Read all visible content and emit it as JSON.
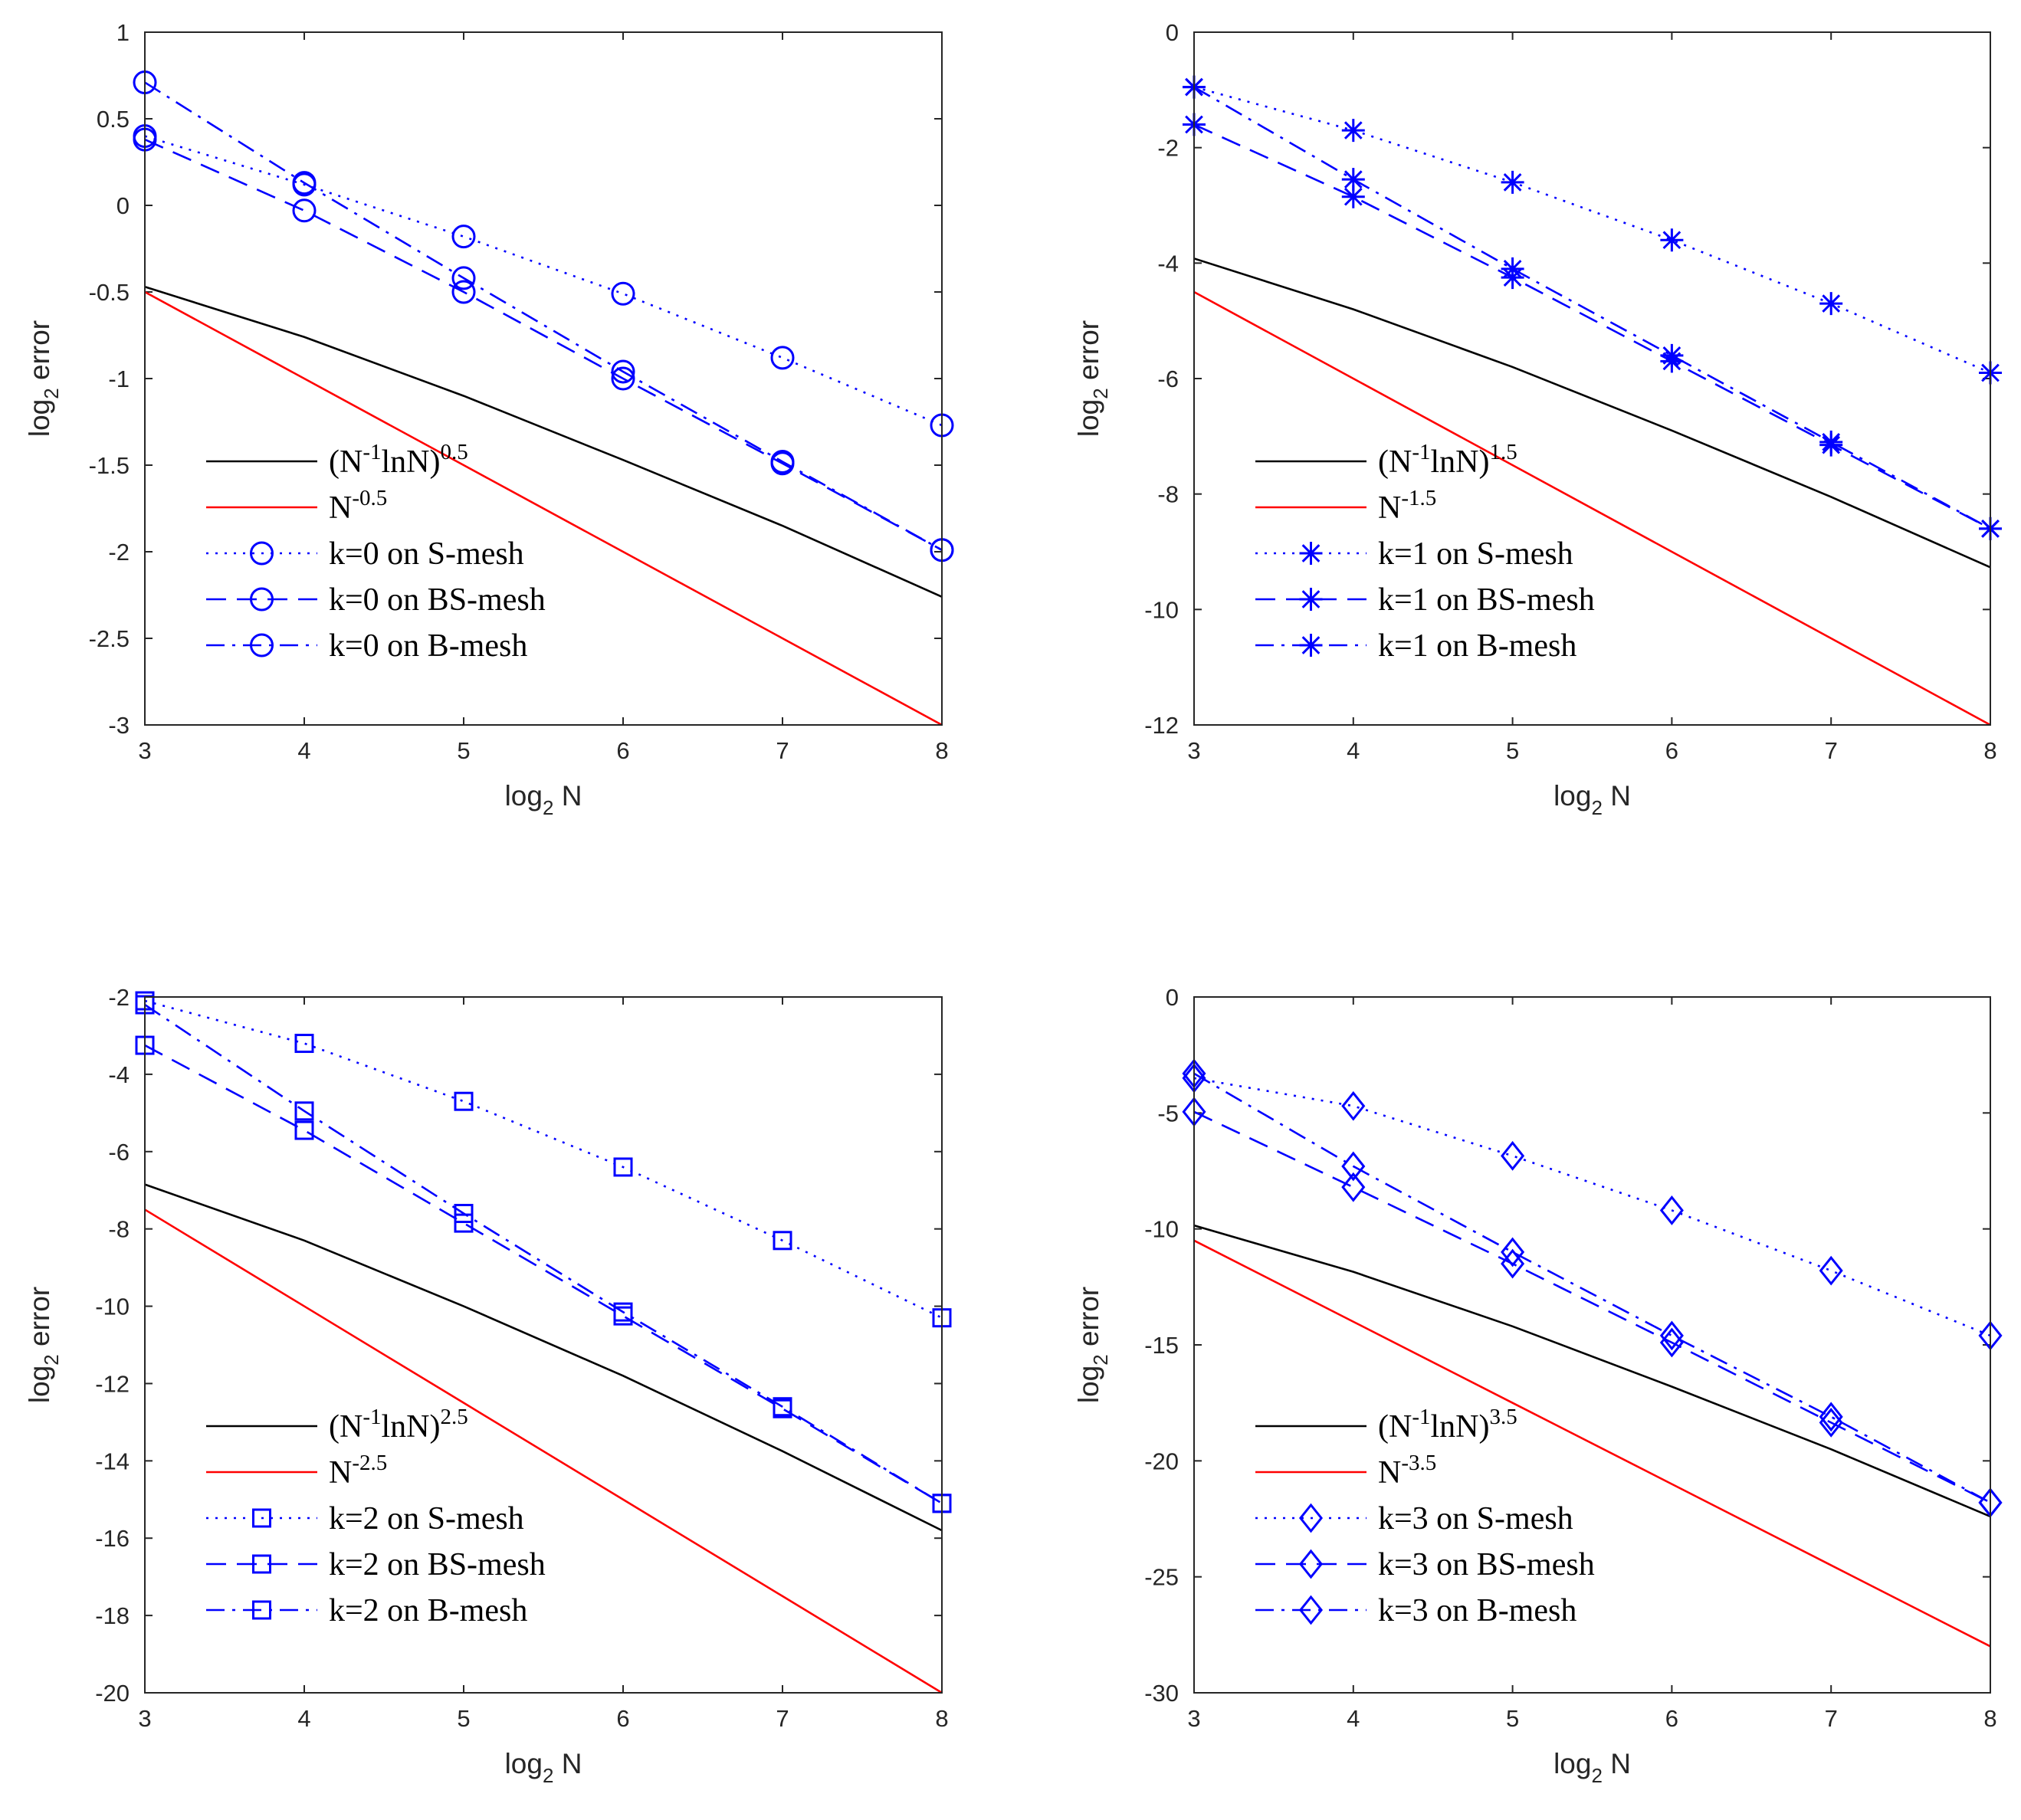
{
  "chart_data": [
    {
      "type": "line",
      "xlabel": "log2 N",
      "ylabel": "log2 error",
      "xlim": [
        3,
        8
      ],
      "ylim": [
        -3,
        1
      ],
      "xticks": [
        3,
        4,
        5,
        6,
        7,
        8
      ],
      "yticks": [
        1,
        0.5,
        0,
        -0.5,
        -1,
        -1.5,
        -2,
        -2.5,
        -3
      ],
      "yticklabels": [
        "1",
        "0.5",
        "0",
        "-0.5",
        "-1",
        "-1.5",
        "-2",
        "-2.5",
        "-3"
      ],
      "legend_position": "bottom-left",
      "x": [
        3,
        4,
        5,
        6,
        7,
        8
      ],
      "series": [
        {
          "name": "(N-1lnN)0.5",
          "label_base": "(N",
          "label_sup1": "-1",
          "label_mid": "lnN)",
          "label_sup2": "0.5",
          "color": "#000000",
          "style": "solid",
          "marker": "none",
          "values": [
            -0.47,
            -0.76,
            -1.1,
            -1.47,
            -1.85,
            -2.26
          ]
        },
        {
          "name": "N-0.5",
          "label_base": "N",
          "label_sup1": "-0.5",
          "label_mid": "",
          "label_sup2": "",
          "color": "#ff0000",
          "style": "solid",
          "marker": "none",
          "values": [
            -0.5,
            -1.0,
            -1.5,
            -2.0,
            -2.5,
            -3.0
          ]
        },
        {
          "name": "k=0 on S-mesh",
          "label_base": "k=0 on S-mesh",
          "label_sup1": "",
          "label_mid": "",
          "label_sup2": "",
          "color": "#0000ff",
          "style": "dotted",
          "marker": "circle",
          "values": [
            0.4,
            0.12,
            -0.18,
            -0.51,
            -0.88,
            -1.27
          ]
        },
        {
          "name": "k=0 on BS-mesh",
          "label_base": "k=0 on BS-mesh",
          "label_sup1": "",
          "label_mid": "",
          "label_sup2": "",
          "color": "#0000ff",
          "style": "dashed",
          "marker": "circle",
          "values": [
            0.38,
            -0.03,
            -0.5,
            -1.0,
            -1.49,
            -1.99
          ]
        },
        {
          "name": "k=0 on B-mesh",
          "label_base": "k=0 on B-mesh",
          "label_sup1": "",
          "label_mid": "",
          "label_sup2": "",
          "color": "#0000ff",
          "style": "dashdot",
          "marker": "circle",
          "values": [
            0.71,
            0.13,
            -0.42,
            -0.96,
            -1.48,
            -1.99
          ]
        }
      ]
    },
    {
      "type": "line",
      "xlabel": "log2 N",
      "ylabel": "log2 error",
      "xlim": [
        3,
        8
      ],
      "ylim": [
        -12,
        0
      ],
      "xticks": [
        3,
        4,
        5,
        6,
        7,
        8
      ],
      "yticks": [
        0,
        -2,
        -4,
        -6,
        -8,
        -10,
        -12
      ],
      "yticklabels": [
        "0",
        "-2",
        "-4",
        "-6",
        "-8",
        "-10",
        "-12"
      ],
      "legend_position": "bottom-left",
      "x": [
        3,
        4,
        5,
        6,
        7,
        8
      ],
      "series": [
        {
          "name": "(N-1lnN)1.5",
          "label_base": "(N",
          "label_sup1": "-1",
          "label_mid": "lnN)",
          "label_sup2": "1.5",
          "color": "#000000",
          "style": "solid",
          "marker": "none",
          "values": [
            -3.92,
            -4.8,
            -5.8,
            -6.9,
            -8.05,
            -9.27
          ]
        },
        {
          "name": "N-1.5",
          "label_base": "N",
          "label_sup1": "-1.5",
          "label_mid": "",
          "label_sup2": "",
          "color": "#ff0000",
          "style": "solid",
          "marker": "none",
          "values": [
            -4.5,
            -6.0,
            -7.5,
            -9.0,
            -10.5,
            -12.0
          ]
        },
        {
          "name": "k=1 on S-mesh",
          "label_base": "k=1 on S-mesh",
          "label_sup1": "",
          "label_mid": "",
          "label_sup2": "",
          "color": "#0000ff",
          "style": "dotted",
          "marker": "star",
          "values": [
            -0.95,
            -1.7,
            -2.6,
            -3.6,
            -4.7,
            -5.9
          ]
        },
        {
          "name": "k=1 on BS-mesh",
          "label_base": "k=1 on BS-mesh",
          "label_sup1": "",
          "label_mid": "",
          "label_sup2": "",
          "color": "#0000ff",
          "style": "dashed",
          "marker": "star",
          "values": [
            -1.6,
            -2.85,
            -4.25,
            -5.7,
            -7.15,
            -8.6
          ]
        },
        {
          "name": "k=1 on B-mesh",
          "label_base": "k=1 on B-mesh",
          "label_sup1": "",
          "label_mid": "",
          "label_sup2": "",
          "color": "#0000ff",
          "style": "dashdot",
          "marker": "star",
          "values": [
            -0.95,
            -2.55,
            -4.1,
            -5.6,
            -7.1,
            -8.6
          ]
        }
      ]
    },
    {
      "type": "line",
      "xlabel": "log2 N",
      "ylabel": "log2 error",
      "xlim": [
        3,
        8
      ],
      "ylim": [
        -20,
        -2
      ],
      "xticks": [
        3,
        4,
        5,
        6,
        7,
        8
      ],
      "yticks": [
        -2,
        -4,
        -6,
        -8,
        -10,
        -12,
        -14,
        -16,
        -18,
        -20
      ],
      "yticklabels": [
        "-2",
        "-4",
        "-6",
        "-8",
        "-10",
        "-12",
        "-14",
        "-16",
        "-18",
        "-20"
      ],
      "legend_position": "bottom-left",
      "x": [
        3,
        4,
        5,
        6,
        7,
        8
      ],
      "series": [
        {
          "name": "(N-1lnN)2.5",
          "label_base": "(N",
          "label_sup1": "-1",
          "label_mid": "lnN)",
          "label_sup2": "2.5",
          "color": "#000000",
          "style": "solid",
          "marker": "none",
          "values": [
            -6.85,
            -8.3,
            -10.0,
            -11.8,
            -13.75,
            -15.8
          ]
        },
        {
          "name": "N-2.5",
          "label_base": "N",
          "label_sup1": "-2.5",
          "label_mid": "",
          "label_sup2": "",
          "color": "#ff0000",
          "style": "solid",
          "marker": "none",
          "values": [
            -7.5,
            -10.0,
            -12.5,
            -15.0,
            -17.5,
            -20.0
          ]
        },
        {
          "name": "k=2 on S-mesh",
          "label_base": "k=2 on S-mesh",
          "label_sup1": "",
          "label_mid": "",
          "label_sup2": "",
          "color": "#0000ff",
          "style": "dotted",
          "marker": "square",
          "values": [
            -2.1,
            -3.2,
            -4.7,
            -6.4,
            -8.3,
            -10.3
          ]
        },
        {
          "name": "k=2 on BS-mesh",
          "label_base": "k=2 on BS-mesh",
          "label_sup1": "",
          "label_mid": "",
          "label_sup2": "",
          "color": "#0000ff",
          "style": "dashed",
          "marker": "square",
          "values": [
            -3.25,
            -5.45,
            -7.85,
            -10.25,
            -12.65,
            -15.1
          ]
        },
        {
          "name": "k=2 on B-mesh",
          "label_base": "k=2 on B-mesh",
          "label_sup1": "",
          "label_mid": "",
          "label_sup2": "",
          "color": "#0000ff",
          "style": "dashdot",
          "marker": "square",
          "values": [
            -2.2,
            -4.95,
            -7.6,
            -10.15,
            -12.6,
            -15.1
          ]
        }
      ]
    },
    {
      "type": "line",
      "xlabel": "log2 N",
      "ylabel": "log2 error",
      "xlim": [
        3,
        8
      ],
      "ylim": [
        -30,
        0
      ],
      "xticks": [
        3,
        4,
        5,
        6,
        7,
        8
      ],
      "yticks": [
        0,
        -5,
        -10,
        -15,
        -20,
        -25,
        -30
      ],
      "yticklabels": [
        "0",
        "-5",
        "-10",
        "-15",
        "-20",
        "-25",
        "-30"
      ],
      "legend_position": "bottom-left",
      "x": [
        3,
        4,
        5,
        6,
        7,
        8
      ],
      "series": [
        {
          "name": "(N-1lnN)3.5",
          "label_base": "(N",
          "label_sup1": "-1",
          "label_mid": "lnN)",
          "label_sup2": "3.5",
          "color": "#000000",
          "style": "solid",
          "marker": "none",
          "values": [
            -9.85,
            -11.85,
            -14.2,
            -16.8,
            -19.5,
            -22.4
          ]
        },
        {
          "name": "N-3.5",
          "label_base": "N",
          "label_sup1": "-3.5",
          "label_mid": "",
          "label_sup2": "",
          "color": "#ff0000",
          "style": "solid",
          "marker": "none",
          "values": [
            -10.5,
            -14.0,
            -17.5,
            -21.0,
            -24.5,
            -28.0
          ]
        },
        {
          "name": "k=3 on S-mesh",
          "label_base": "k=3 on S-mesh",
          "label_sup1": "",
          "label_mid": "",
          "label_sup2": "",
          "color": "#0000ff",
          "style": "dotted",
          "marker": "diamond",
          "values": [
            -3.5,
            -4.7,
            -6.85,
            -9.2,
            -11.8,
            -14.6
          ]
        },
        {
          "name": "k=3 on BS-mesh",
          "label_base": "k=3 on BS-mesh",
          "label_sup1": "",
          "label_mid": "",
          "label_sup2": "",
          "color": "#0000ff",
          "style": "dashed",
          "marker": "diamond",
          "values": [
            -4.95,
            -8.2,
            -11.5,
            -14.9,
            -18.35,
            -21.8
          ]
        },
        {
          "name": "k=3 on B-mesh",
          "label_base": "k=3 on B-mesh",
          "label_sup1": "",
          "label_mid": "",
          "label_sup2": "",
          "color": "#0000ff",
          "style": "dashdot",
          "marker": "diamond",
          "values": [
            -3.3,
            -7.3,
            -11.0,
            -14.6,
            -18.1,
            -21.8
          ]
        }
      ]
    }
  ]
}
